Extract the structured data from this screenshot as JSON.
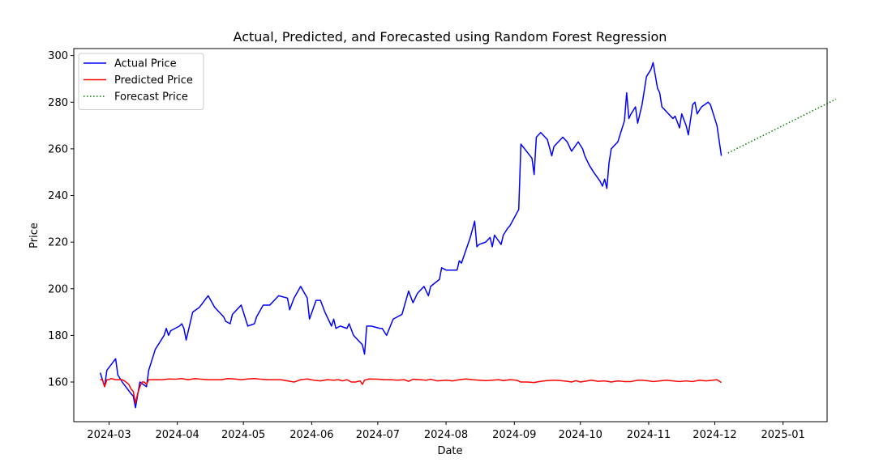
{
  "chart_data": {
    "type": "line",
    "title": "Actual, Predicted, and Forecasted using Random Forest Regression",
    "xlabel": "Date",
    "ylabel": "Price",
    "xlim": [
      "2024-02-14",
      "2025-01-21"
    ],
    "ylim": [
      143,
      303
    ],
    "x_ticks": [
      "2024-03",
      "2024-04",
      "2024-05",
      "2024-06",
      "2024-07",
      "2024-08",
      "2024-09",
      "2024-10",
      "2024-11",
      "2024-12",
      "2025-01"
    ],
    "y_ticks": [
      160,
      180,
      200,
      220,
      240,
      260,
      280,
      300
    ],
    "grid": false,
    "legend": {
      "position": "upper-left"
    },
    "series": [
      {
        "name": "Actual Price",
        "color": "#0000ff",
        "style": "solid",
        "points": [
          [
            "2024-02-26",
            164
          ],
          [
            "2024-02-28",
            158
          ],
          [
            "2024-02-29",
            165
          ],
          [
            "2024-03-04",
            170
          ],
          [
            "2024-03-05",
            163
          ],
          [
            "2024-03-07",
            160
          ],
          [
            "2024-03-11",
            155
          ],
          [
            "2024-03-12",
            154
          ],
          [
            "2024-03-13",
            149
          ],
          [
            "2024-03-15",
            160
          ],
          [
            "2024-03-18",
            158
          ],
          [
            "2024-03-19",
            165
          ],
          [
            "2024-03-22",
            174
          ],
          [
            "2024-03-26",
            180
          ],
          [
            "2024-03-27",
            183
          ],
          [
            "2024-03-28",
            180
          ],
          [
            "2024-03-29",
            182
          ],
          [
            "2024-04-02",
            184
          ],
          [
            "2024-04-03",
            185
          ],
          [
            "2024-04-04",
            183
          ],
          [
            "2024-04-05",
            178
          ],
          [
            "2024-04-08",
            190
          ],
          [
            "2024-04-11",
            192
          ],
          [
            "2024-04-15",
            197
          ],
          [
            "2024-04-18",
            192
          ],
          [
            "2024-04-22",
            188
          ],
          [
            "2024-04-23",
            186
          ],
          [
            "2024-04-25",
            185
          ],
          [
            "2024-04-26",
            189
          ],
          [
            "2024-04-30",
            193
          ],
          [
            "2024-05-02",
            187
          ],
          [
            "2024-05-03",
            184
          ],
          [
            "2024-05-06",
            185
          ],
          [
            "2024-05-07",
            188
          ],
          [
            "2024-05-10",
            193
          ],
          [
            "2024-05-13",
            193
          ],
          [
            "2024-05-15",
            195
          ],
          [
            "2024-05-17",
            197
          ],
          [
            "2024-05-21",
            196
          ],
          [
            "2024-05-22",
            191
          ],
          [
            "2024-05-24",
            196
          ],
          [
            "2024-05-27",
            201
          ],
          [
            "2024-05-30",
            196
          ],
          [
            "2024-05-31",
            187
          ],
          [
            "2024-06-03",
            195
          ],
          [
            "2024-06-05",
            195
          ],
          [
            "2024-06-07",
            190
          ],
          [
            "2024-06-10",
            184
          ],
          [
            "2024-06-11",
            187
          ],
          [
            "2024-06-12",
            183
          ],
          [
            "2024-06-14",
            184
          ],
          [
            "2024-06-17",
            183
          ],
          [
            "2024-06-18",
            185
          ],
          [
            "2024-06-20",
            180
          ],
          [
            "2024-06-24",
            176
          ],
          [
            "2024-06-25",
            172
          ],
          [
            "2024-06-26",
            184
          ],
          [
            "2024-06-28",
            184
          ],
          [
            "2024-07-02",
            183
          ],
          [
            "2024-07-03",
            183
          ],
          [
            "2024-07-05",
            180
          ],
          [
            "2024-07-08",
            187
          ],
          [
            "2024-07-12",
            189
          ],
          [
            "2024-07-15",
            199
          ],
          [
            "2024-07-17",
            194
          ],
          [
            "2024-07-19",
            198
          ],
          [
            "2024-07-22",
            201
          ],
          [
            "2024-07-24",
            197
          ],
          [
            "2024-07-25",
            201
          ],
          [
            "2024-07-29",
            204
          ],
          [
            "2024-07-30",
            209
          ],
          [
            "2024-08-01",
            208
          ],
          [
            "2024-08-06",
            208
          ],
          [
            "2024-08-07",
            212
          ],
          [
            "2024-08-08",
            211
          ],
          [
            "2024-08-12",
            222
          ],
          [
            "2024-08-14",
            229
          ],
          [
            "2024-08-15",
            218
          ],
          [
            "2024-08-16",
            219
          ],
          [
            "2024-08-19",
            220
          ],
          [
            "2024-08-21",
            222
          ],
          [
            "2024-08-22",
            218
          ],
          [
            "2024-08-23",
            223
          ],
          [
            "2024-08-26",
            219
          ],
          [
            "2024-08-27",
            223
          ],
          [
            "2024-08-29",
            226
          ],
          [
            "2024-08-30",
            227
          ],
          [
            "2024-09-03",
            234
          ],
          [
            "2024-09-04",
            262
          ],
          [
            "2024-09-09",
            256
          ],
          [
            "2024-09-10",
            249
          ],
          [
            "2024-09-11",
            265
          ],
          [
            "2024-09-13",
            267
          ],
          [
            "2024-09-16",
            264
          ],
          [
            "2024-09-18",
            257
          ],
          [
            "2024-09-19",
            261
          ],
          [
            "2024-09-23",
            265
          ],
          [
            "2024-09-25",
            263
          ],
          [
            "2024-09-27",
            259
          ],
          [
            "2024-09-30",
            263
          ],
          [
            "2024-10-02",
            260
          ],
          [
            "2024-10-03",
            257
          ],
          [
            "2024-10-05",
            253
          ],
          [
            "2024-10-07",
            250
          ],
          [
            "2024-10-10",
            246
          ],
          [
            "2024-10-11",
            244
          ],
          [
            "2024-10-12",
            247
          ],
          [
            "2024-10-13",
            243
          ],
          [
            "2024-10-14",
            254
          ],
          [
            "2024-10-15",
            260
          ],
          [
            "2024-10-17",
            262
          ],
          [
            "2024-10-18",
            263
          ],
          [
            "2024-10-21",
            272
          ],
          [
            "2024-10-22",
            284
          ],
          [
            "2024-10-23",
            273
          ],
          [
            "2024-10-24",
            275
          ],
          [
            "2024-10-26",
            278
          ],
          [
            "2024-10-27",
            271
          ],
          [
            "2024-10-29",
            279
          ],
          [
            "2024-10-31",
            291
          ],
          [
            "2024-11-02",
            294
          ],
          [
            "2024-11-03",
            297
          ],
          [
            "2024-11-05",
            286
          ],
          [
            "2024-11-06",
            284
          ],
          [
            "2024-11-07",
            278
          ],
          [
            "2024-11-11",
            274
          ],
          [
            "2024-11-12",
            273
          ],
          [
            "2024-11-13",
            274
          ],
          [
            "2024-11-15",
            269
          ],
          [
            "2024-11-16",
            275
          ],
          [
            "2024-11-18",
            270
          ],
          [
            "2024-11-19",
            266
          ],
          [
            "2024-11-21",
            279
          ],
          [
            "2024-11-22",
            280
          ],
          [
            "2024-11-23",
            275
          ],
          [
            "2024-11-25",
            278
          ],
          [
            "2024-11-28",
            280
          ],
          [
            "2024-11-29",
            279
          ],
          [
            "2024-12-02",
            270
          ],
          [
            "2024-12-04",
            257
          ]
        ]
      },
      {
        "name": "Predicted Price",
        "color": "#ff0000",
        "style": "solid",
        "points": [
          [
            "2024-02-26",
            161
          ],
          [
            "2024-02-27",
            161
          ],
          [
            "2024-02-28",
            158
          ],
          [
            "2024-02-29",
            161
          ],
          [
            "2024-03-01",
            161
          ],
          [
            "2024-03-02",
            161.5
          ],
          [
            "2024-03-04",
            161
          ],
          [
            "2024-03-06",
            161
          ],
          [
            "2024-03-07",
            161
          ],
          [
            "2024-03-08",
            160.5
          ],
          [
            "2024-03-10",
            159
          ],
          [
            "2024-03-11",
            157
          ],
          [
            "2024-03-12",
            156
          ],
          [
            "2024-03-13",
            151
          ],
          [
            "2024-03-14",
            155
          ],
          [
            "2024-03-15",
            158
          ],
          [
            "2024-03-16",
            160
          ],
          [
            "2024-03-17",
            160
          ],
          [
            "2024-03-18",
            159
          ],
          [
            "2024-03-19",
            161
          ],
          [
            "2024-03-22",
            161
          ],
          [
            "2024-03-25",
            161
          ],
          [
            "2024-03-28",
            161.3
          ],
          [
            "2024-03-31",
            161.2
          ],
          [
            "2024-04-03",
            161.5
          ],
          [
            "2024-04-06",
            161
          ],
          [
            "2024-04-09",
            161.5
          ],
          [
            "2024-04-12",
            161.2
          ],
          [
            "2024-04-15",
            161
          ],
          [
            "2024-04-18",
            161
          ],
          [
            "2024-04-21",
            161
          ],
          [
            "2024-04-24",
            161.5
          ],
          [
            "2024-04-27",
            161.3
          ],
          [
            "2024-04-30",
            161
          ],
          [
            "2024-05-03",
            161.3
          ],
          [
            "2024-05-06",
            161.5
          ],
          [
            "2024-05-09",
            161.2
          ],
          [
            "2024-05-12",
            161
          ],
          [
            "2024-05-15",
            161
          ],
          [
            "2024-05-18",
            161
          ],
          [
            "2024-05-21",
            160.5
          ],
          [
            "2024-05-24",
            160
          ],
          [
            "2024-05-27",
            161
          ],
          [
            "2024-05-30",
            161.3
          ],
          [
            "2024-06-02",
            160.8
          ],
          [
            "2024-06-05",
            160.5
          ],
          [
            "2024-06-08",
            161
          ],
          [
            "2024-06-11",
            160.8
          ],
          [
            "2024-06-13",
            161
          ],
          [
            "2024-06-15",
            160.5
          ],
          [
            "2024-06-17",
            161
          ],
          [
            "2024-06-19",
            160
          ],
          [
            "2024-06-21",
            160
          ],
          [
            "2024-06-23",
            160.5
          ],
          [
            "2024-06-24",
            159
          ],
          [
            "2024-06-25",
            160.8
          ],
          [
            "2024-06-27",
            161.3
          ],
          [
            "2024-07-01",
            161.2
          ],
          [
            "2024-07-04",
            161
          ],
          [
            "2024-07-07",
            161
          ],
          [
            "2024-07-10",
            160.8
          ],
          [
            "2024-07-13",
            161
          ],
          [
            "2024-07-15",
            160.3
          ],
          [
            "2024-07-17",
            161.2
          ],
          [
            "2024-07-20",
            161
          ],
          [
            "2024-07-23",
            160.8
          ],
          [
            "2024-07-25",
            161.2
          ],
          [
            "2024-07-28",
            160.5
          ],
          [
            "2024-08-01",
            160.8
          ],
          [
            "2024-08-04",
            160.5
          ],
          [
            "2024-08-07",
            161
          ],
          [
            "2024-08-10",
            161.3
          ],
          [
            "2024-08-13",
            161
          ],
          [
            "2024-08-16",
            160.8
          ],
          [
            "2024-08-19",
            160.6
          ],
          [
            "2024-08-22",
            160.8
          ],
          [
            "2024-08-25",
            161
          ],
          [
            "2024-08-27",
            160.6
          ],
          [
            "2024-08-30",
            161
          ],
          [
            "2024-09-02",
            160.8
          ],
          [
            "2024-09-04",
            160
          ],
          [
            "2024-09-07",
            160
          ],
          [
            "2024-09-10",
            159.8
          ],
          [
            "2024-09-13",
            160.3
          ],
          [
            "2024-09-16",
            160.6
          ],
          [
            "2024-09-19",
            160.8
          ],
          [
            "2024-09-22",
            160.6
          ],
          [
            "2024-09-25",
            160.3
          ],
          [
            "2024-09-27",
            160
          ],
          [
            "2024-09-29",
            160.6
          ],
          [
            "2024-10-01",
            160
          ],
          [
            "2024-10-03",
            160.3
          ],
          [
            "2024-10-06",
            160.8
          ],
          [
            "2024-10-09",
            160.3
          ],
          [
            "2024-10-12",
            160.5
          ],
          [
            "2024-10-15",
            160
          ],
          [
            "2024-10-18",
            160.5
          ],
          [
            "2024-10-21",
            160.2
          ],
          [
            "2024-10-24",
            160.2
          ],
          [
            "2024-10-27",
            160.8
          ],
          [
            "2024-10-29",
            160.8
          ],
          [
            "2024-11-01",
            160.5
          ],
          [
            "2024-11-03",
            160.2
          ],
          [
            "2024-11-06",
            160.5
          ],
          [
            "2024-11-09",
            160.8
          ],
          [
            "2024-11-12",
            160.5
          ],
          [
            "2024-11-15",
            160.2
          ],
          [
            "2024-11-18",
            160.5
          ],
          [
            "2024-11-21",
            160.2
          ],
          [
            "2024-11-24",
            160.8
          ],
          [
            "2024-11-27",
            160.5
          ],
          [
            "2024-11-30",
            160.8
          ],
          [
            "2024-12-02",
            161
          ],
          [
            "2024-12-04",
            159.8
          ]
        ]
      },
      {
        "name": "Forecast Price",
        "color": "#008000",
        "style": "dotted",
        "points": [
          [
            "2024-12-07",
            258.2
          ],
          [
            "2025-01-25",
            281.3
          ]
        ]
      }
    ]
  }
}
